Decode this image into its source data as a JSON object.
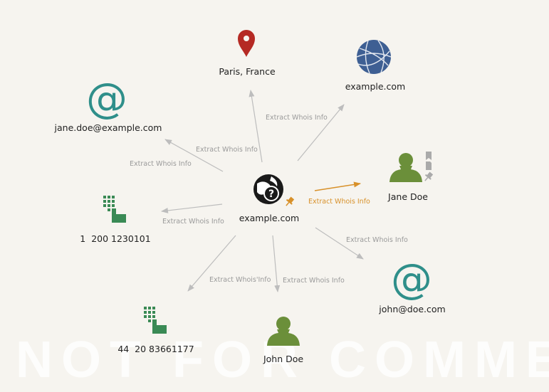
{
  "watermark": "NOT FOR COMMERCIAL US",
  "center": {
    "label": "example.com",
    "icon": "whois-domain-icon"
  },
  "nodes": [
    {
      "id": "paris",
      "label": "Paris, France",
      "icon": "location-pin-icon"
    },
    {
      "id": "site",
      "label": "example.com",
      "icon": "globe-icon"
    },
    {
      "id": "jane-email",
      "label": "jane.doe@example.com",
      "icon": "email-at-icon"
    },
    {
      "id": "jane",
      "label": "Jane Doe",
      "icon": "person-icon"
    },
    {
      "id": "phone1",
      "label": "1  200 1230101",
      "icon": "phone-keypad-icon"
    },
    {
      "id": "john-email",
      "label": "john@doe.com",
      "icon": "email-at-icon"
    },
    {
      "id": "phone2",
      "label": "44  20 83661177",
      "icon": "phone-keypad-icon"
    },
    {
      "id": "john",
      "label": "John Doe",
      "icon": "person-icon"
    }
  ],
  "edge_label": "Extract Whois Info",
  "edge_label_alt": "Extract Whois'Info",
  "colors": {
    "background": "#f6f4ef",
    "edge": "#bdbdbd",
    "active_edge": "#d8912a",
    "pin": "#b52a24",
    "globe": "#3e5f93",
    "email": "#2f8f8a",
    "person": "#6b8f3a",
    "phone": "#3a8a55"
  }
}
